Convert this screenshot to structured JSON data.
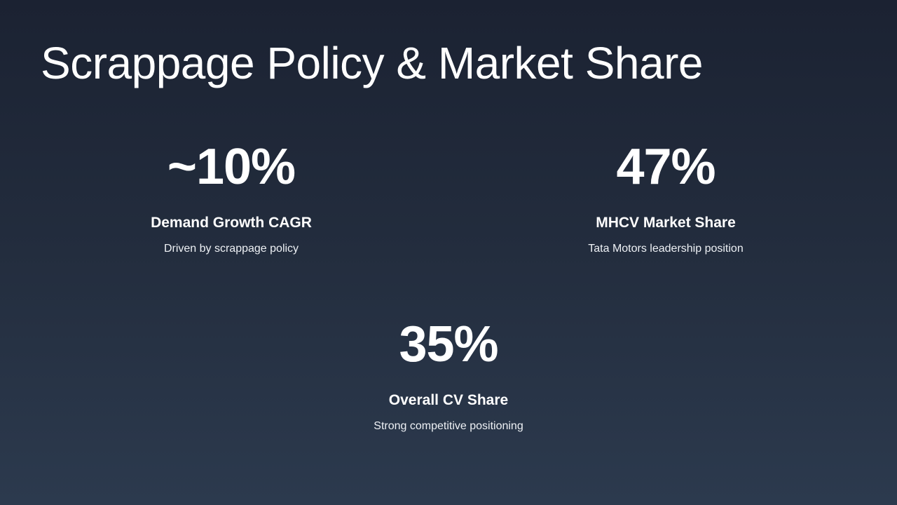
{
  "slide": {
    "title": "Scrappage Policy & Market Share",
    "background_colors": [
      "#1b2232",
      "#2c3a4e"
    ],
    "text_color": "#ffffff",
    "stats": [
      {
        "value": "~10%",
        "label": "Demand Growth CAGR",
        "description": "Driven by scrappage policy"
      },
      {
        "value": "47%",
        "label": "MHCV Market Share",
        "description": "Tata Motors leadership position"
      },
      {
        "value": "35%",
        "label": "Overall CV Share",
        "description": "Strong competitive positioning"
      }
    ]
  }
}
